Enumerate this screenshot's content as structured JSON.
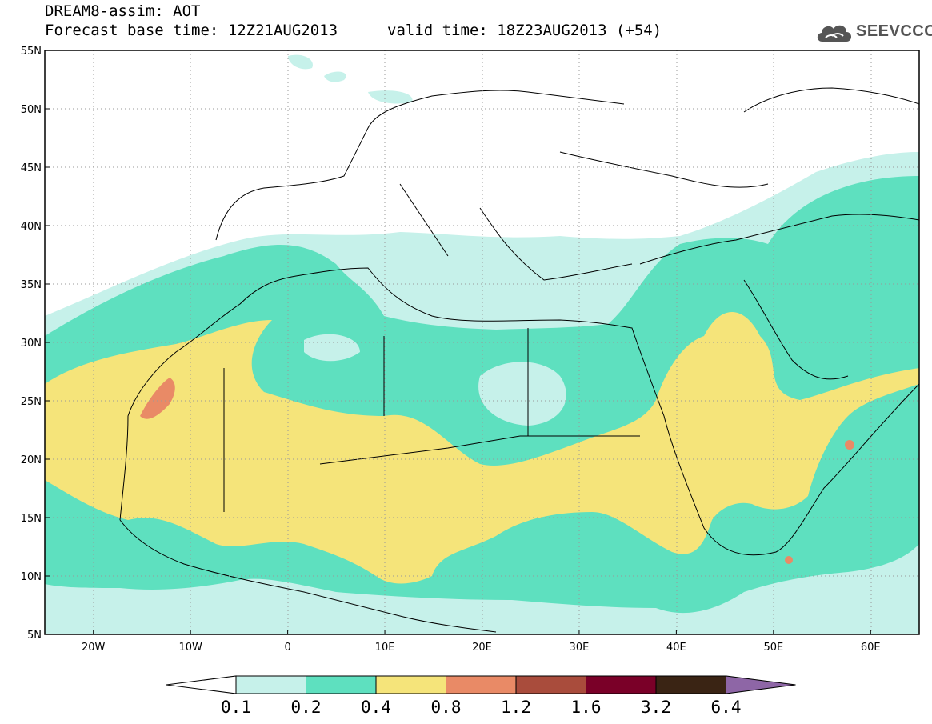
{
  "title": {
    "line1": "DREAM8-assim: AOT",
    "line2": "Forecast base time: 12Z21AUG2013",
    "valid": "valid time: 18Z23AUG2013 (+54)"
  },
  "logo": {
    "text": "SEEVCCC",
    "icon": "cloud-icon"
  },
  "map": {
    "lon_range": [
      -25,
      65
    ],
    "lat_range": [
      5,
      55
    ],
    "lat_ticks": [
      "5N",
      "10N",
      "15N",
      "20N",
      "25N",
      "30N",
      "35N",
      "40N",
      "45N",
      "50N",
      "55N"
    ],
    "lon_ticks": [
      "20W",
      "10W",
      "0",
      "10E",
      "20E",
      "30E",
      "40E",
      "50E",
      "60E"
    ],
    "gridlines": "dotted"
  },
  "colorbar": {
    "labels": [
      "0.1",
      "0.2",
      "0.4",
      "0.8",
      "1.2",
      "1.6",
      "3.2",
      "6.4"
    ],
    "colors": [
      "#ffffff",
      "#c6f1ea",
      "#5ee0bf",
      "#f5e47a",
      "#e98a66",
      "#a94c3c",
      "#7a0028",
      "#3a2414",
      "#8e66a6"
    ]
  }
}
